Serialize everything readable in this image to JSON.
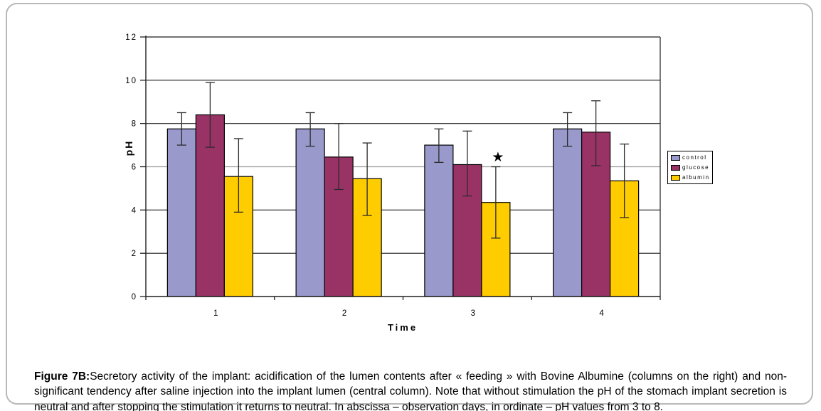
{
  "figure": {
    "caption_label": "Figure 7B:",
    "caption_text": "Secretory activity of the implant: acidification of the lumen contents after « feeding » with Bovine Albumine (columns on the right) and non-significant tendency after saline injection into the implant lumen (central column). Note that without stimulation the pH of the stomach implant secretion is neutral and after stopping the stimulation it returns to neutral. In abscissa – observation days, in ordinate – pH values from 3 to 8."
  },
  "chart_data": {
    "type": "bar",
    "title": "",
    "xlabel": "Time",
    "ylabel": "pH",
    "categories": [
      "1",
      "2",
      "3",
      "4"
    ],
    "ylim": [
      0,
      12
    ],
    "yticks": [
      0,
      2,
      4,
      6,
      8,
      10,
      12
    ],
    "grid": true,
    "grid_color": "#1f1f1f",
    "light_gridline_at": 6,
    "light_gridline_color": "#9a9a9a",
    "axis_color": "#1f1f1f",
    "bar_border_color": "#000000",
    "error_bar_color": "#2b2b2b",
    "legend_position": "right",
    "series": [
      {
        "name": "control",
        "color": "#9999CC",
        "values": [
          7.75,
          7.75,
          7.0,
          7.75
        ],
        "err_low": [
          7.0,
          6.95,
          6.2,
          6.95
        ],
        "err_high": [
          8.5,
          8.5,
          7.75,
          8.5
        ]
      },
      {
        "name": "glucose",
        "color": "#993366",
        "values": [
          8.4,
          6.45,
          6.1,
          7.6
        ],
        "err_low": [
          6.9,
          4.95,
          4.65,
          6.05
        ],
        "err_high": [
          9.9,
          8.0,
          7.65,
          9.05
        ]
      },
      {
        "name": "albumin",
        "color": "#FFCC00",
        "values": [
          5.55,
          5.45,
          4.35,
          5.35
        ],
        "err_low": [
          3.9,
          3.75,
          2.7,
          3.65
        ],
        "err_high": [
          7.3,
          7.1,
          6.0,
          7.05
        ]
      }
    ],
    "annotations": [
      {
        "symbol": "★",
        "series": "albumin",
        "category": "3",
        "y": 6.45
      }
    ]
  }
}
